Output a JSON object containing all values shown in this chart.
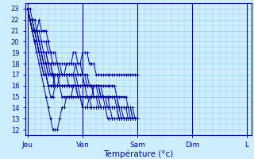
{
  "xlabel": "Température (°c)",
  "bg_color": "#cceeff",
  "grid_color": "#99ccdd",
  "line_color": "#0000bb",
  "x_ticks_pos": [
    0,
    24,
    48,
    72,
    96
  ],
  "x_labels": [
    "Jeu",
    "Ven",
    "Sam",
    "Dim",
    "L"
  ],
  "ylim": [
    11.5,
    23.5
  ],
  "xlim": [
    -1,
    98
  ],
  "yticks": [
    12,
    13,
    14,
    15,
    16,
    17,
    18,
    19,
    20,
    21,
    22,
    23
  ],
  "series": [
    [
      23,
      22,
      21,
      20,
      19,
      18,
      17,
      16,
      15,
      14,
      13,
      12,
      12,
      12,
      13,
      14,
      14,
      15,
      15,
      15,
      16,
      16,
      15,
      15,
      14,
      14,
      14,
      15,
      15,
      16,
      16,
      15,
      15,
      15,
      15,
      14,
      14,
      14,
      14,
      14,
      13,
      13,
      13,
      13,
      13,
      13,
      13,
      13,
      13
    ],
    [
      23,
      22,
      21,
      21,
      20,
      19,
      18,
      17,
      17,
      16,
      15,
      15,
      16,
      16,
      17,
      17,
      17,
      18,
      18,
      18,
      19,
      19,
      18,
      18,
      17,
      17,
      17,
      16,
      16,
      16,
      16,
      16,
      16,
      16,
      16,
      16,
      16,
      16,
      16,
      15,
      15,
      15,
      15,
      15,
      14,
      14,
      14,
      13,
      13
    ],
    [
      23,
      22,
      22,
      21,
      21,
      20,
      19,
      19,
      18,
      18,
      18,
      18,
      18,
      18,
      18,
      18,
      18,
      18,
      18,
      18,
      18,
      18,
      17,
      17,
      17,
      17,
      16,
      16,
      16,
      16,
      16,
      16,
      16,
      15,
      15,
      15,
      15,
      15,
      15,
      15,
      14,
      14,
      14,
      14,
      14,
      14,
      13,
      13,
      13
    ],
    [
      23,
      22,
      22,
      21,
      21,
      20,
      19,
      19,
      19,
      18,
      18,
      17,
      17,
      17,
      17,
      17,
      17,
      17,
      17,
      17,
      17,
      17,
      17,
      17,
      17,
      16,
      16,
      16,
      16,
      16,
      16,
      16,
      15,
      15,
      15,
      15,
      15,
      15,
      15,
      14,
      14,
      14,
      14,
      14,
      14,
      13,
      13,
      13,
      13
    ],
    [
      23,
      22,
      21,
      21,
      20,
      19,
      19,
      18,
      18,
      18,
      17,
      17,
      16,
      16,
      16,
      16,
      16,
      16,
      16,
      16,
      16,
      16,
      16,
      16,
      16,
      16,
      16,
      16,
      16,
      15,
      15,
      15,
      15,
      15,
      14,
      14,
      14,
      14,
      14,
      14,
      14,
      14,
      13,
      13,
      13,
      13,
      13,
      13,
      13
    ],
    [
      23,
      22,
      21,
      21,
      20,
      19,
      19,
      18,
      18,
      17,
      17,
      17,
      16,
      16,
      16,
      16,
      16,
      16,
      16,
      16,
      16,
      16,
      15,
      15,
      15,
      15,
      15,
      15,
      15,
      15,
      15,
      14,
      14,
      14,
      14,
      14,
      14,
      14,
      14,
      14,
      13,
      13,
      13,
      13,
      13,
      13,
      13,
      13,
      13
    ],
    [
      23,
      22,
      21,
      20,
      19,
      19,
      18,
      18,
      17,
      16,
      16,
      16,
      16,
      16,
      16,
      15,
      15,
      15,
      15,
      15,
      15,
      15,
      15,
      15,
      14,
      14,
      14,
      14,
      14,
      14,
      14,
      14,
      14,
      14,
      14,
      13,
      13,
      13,
      13,
      13,
      13,
      13,
      13,
      13,
      13,
      13,
      13,
      13,
      13
    ],
    [
      23,
      23,
      22,
      22,
      21,
      21,
      20,
      20,
      20,
      19,
      19,
      18,
      18,
      18,
      18,
      17,
      17,
      17,
      17,
      17,
      17,
      18,
      18,
      18,
      19,
      19,
      19,
      18,
      18,
      18,
      17,
      17,
      17,
      17,
      17,
      17,
      17,
      17,
      17,
      17,
      17,
      17,
      17,
      17,
      17,
      17,
      17,
      17,
      17
    ],
    [
      23,
      22,
      21,
      21,
      20,
      19,
      18,
      17,
      17,
      16,
      16,
      16,
      17,
      17,
      17,
      17,
      17,
      17,
      17,
      17,
      17,
      17,
      16,
      16,
      16,
      16,
      16,
      16,
      16,
      16,
      16,
      16,
      15,
      15,
      15,
      15,
      15,
      15,
      15,
      15,
      14,
      14,
      14,
      14,
      14,
      14,
      13,
      13,
      13
    ],
    [
      23,
      22,
      21,
      20,
      20,
      20,
      19,
      18,
      18,
      17,
      17,
      17,
      17,
      17,
      16,
      16,
      16,
      16,
      16,
      16,
      16,
      16,
      16,
      16,
      16,
      16,
      15,
      15,
      15,
      15,
      15,
      15,
      14,
      14,
      14,
      14,
      14,
      14,
      14,
      14,
      14,
      13,
      13,
      13,
      13,
      13,
      13,
      13,
      13
    ],
    [
      23,
      22,
      21,
      21,
      21,
      22,
      21,
      21,
      21,
      20,
      19,
      19,
      19,
      18,
      17,
      17,
      17,
      17,
      17,
      17,
      17,
      16,
      16,
      16,
      16,
      16,
      16,
      16,
      16,
      15,
      15,
      15,
      15,
      15,
      15,
      15,
      14,
      14,
      14,
      14,
      14,
      14,
      14,
      14,
      13,
      13,
      13,
      13,
      13
    ],
    [
      23,
      22,
      22,
      21,
      21,
      20,
      20,
      19,
      19,
      18,
      18,
      17,
      17,
      17,
      17,
      17,
      17,
      17,
      16,
      16,
      16,
      16,
      16,
      15,
      15,
      15,
      15,
      15,
      14,
      14,
      14,
      14,
      14,
      14,
      14,
      14,
      14,
      13,
      13,
      13,
      13,
      13,
      13,
      13,
      13,
      13,
      13,
      13,
      13
    ]
  ]
}
